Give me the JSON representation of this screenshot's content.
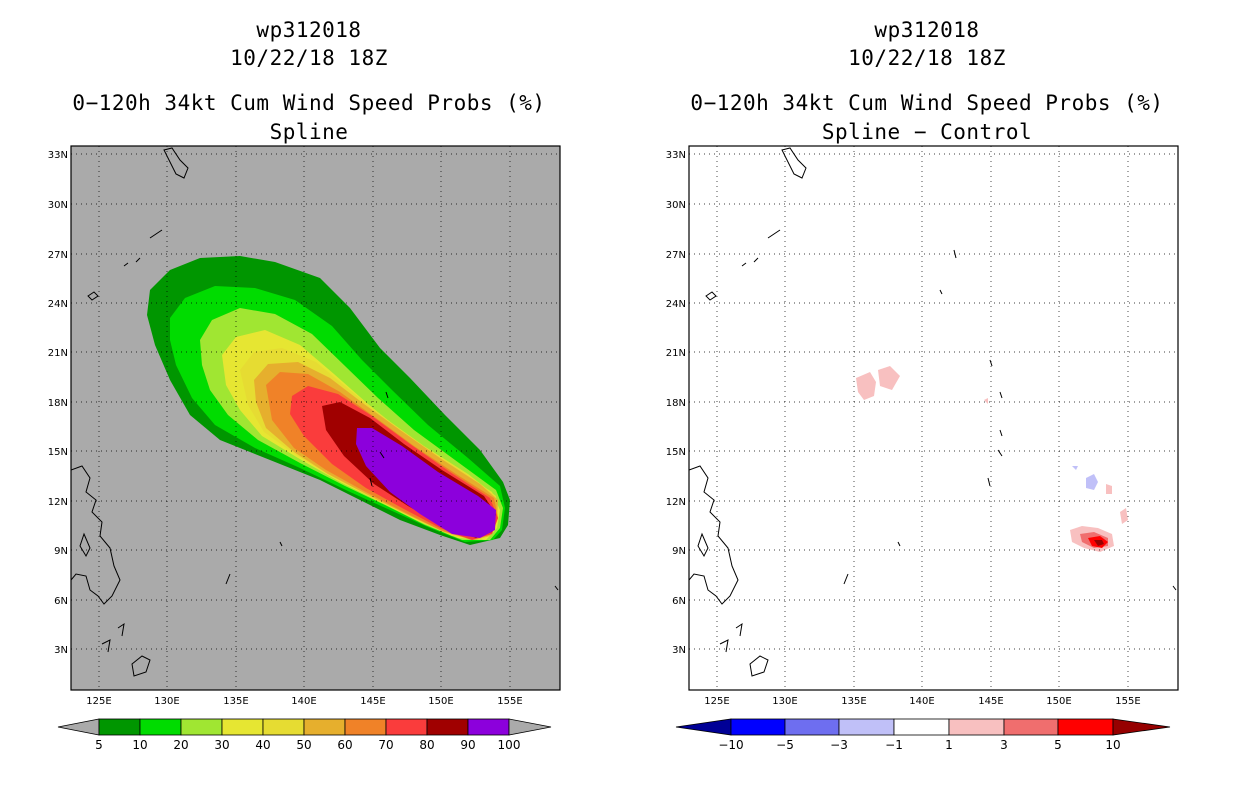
{
  "figure": {
    "storm_id": "wp312018",
    "datetime": "10/22/18 18Z",
    "product": "0−120h 34kt Cum Wind Speed Probs (%)"
  },
  "panels": [
    {
      "subtitle": "Spline",
      "lat_labels": [
        "33N",
        "30N",
        "27N",
        "24N",
        "21N",
        "18N",
        "15N",
        "12N",
        "9N",
        "6N",
        "3N"
      ],
      "lon_labels": [
        "125E",
        "130E",
        "135E",
        "140E",
        "145E",
        "150E",
        "155E"
      ],
      "colorbar": {
        "labels": [
          "5",
          "10",
          "20",
          "30",
          "40",
          "50",
          "60",
          "70",
          "80",
          "90",
          "100"
        ],
        "colors": [
          "#009600",
          "#00dc00",
          "#a0e632",
          "#e6e632",
          "#e6dc32",
          "#e6af2d",
          "#f08228",
          "#fa3c3c",
          "#a00000",
          "#8c00dc"
        ]
      }
    },
    {
      "subtitle": "Spline − Control",
      "lat_labels": [
        "33N",
        "30N",
        "27N",
        "24N",
        "21N",
        "18N",
        "15N",
        "12N",
        "9N",
        "6N",
        "3N"
      ],
      "lon_labels": [
        "125E",
        "130E",
        "135E",
        "140E",
        "145E",
        "150E",
        "155E"
      ],
      "colorbar": {
        "labels": [
          "−10",
          "−5",
          "−3",
          "−1",
          "1",
          "3",
          "5",
          "10"
        ],
        "colors": [
          "#0000c8",
          "#0000ff",
          "#6e6ef0",
          "#c0c0f8",
          "#ffffff",
          "#f8c0c0",
          "#f06e6e",
          "#ff0000"
        ],
        "end_low": "#000096",
        "end_high": "#960000"
      }
    }
  ],
  "chart_data": [
    {
      "type": "filled-contour-map",
      "title": "wp312018 10/22/18 18Z — 0−120h 34kt Cum Wind Speed Probs (%)",
      "subtitle": "Spline",
      "lon_range": [
        122,
        158
      ],
      "lat_range": [
        1,
        33.5
      ],
      "levels": [
        5,
        10,
        20,
        30,
        40,
        50,
        60,
        70,
        80,
        90,
        100
      ],
      "max_probability_center": {
        "lon": 149,
        "lat": 13
      }
    },
    {
      "type": "filled-contour-map",
      "title": "wp312018 10/22/18 18Z — 0−120h 34kt Cum Wind Speed Probs (%)",
      "subtitle": "Spline − Control",
      "lon_range": [
        122,
        158
      ],
      "lat_range": [
        1,
        33.5
      ],
      "levels": [
        -10,
        -5,
        -3,
        -1,
        1,
        3,
        5,
        10
      ],
      "features": [
        {
          "sign": "positive",
          "lon": 152.5,
          "lat": 9.5,
          "max_range": "5 to 10"
        },
        {
          "sign": "positive",
          "lon": 136,
          "lat": 19.5,
          "max_range": "1 to 3"
        },
        {
          "sign": "negative",
          "lon": 151.5,
          "lat": 12.5,
          "max_range": "-1 to -3"
        }
      ]
    }
  ]
}
